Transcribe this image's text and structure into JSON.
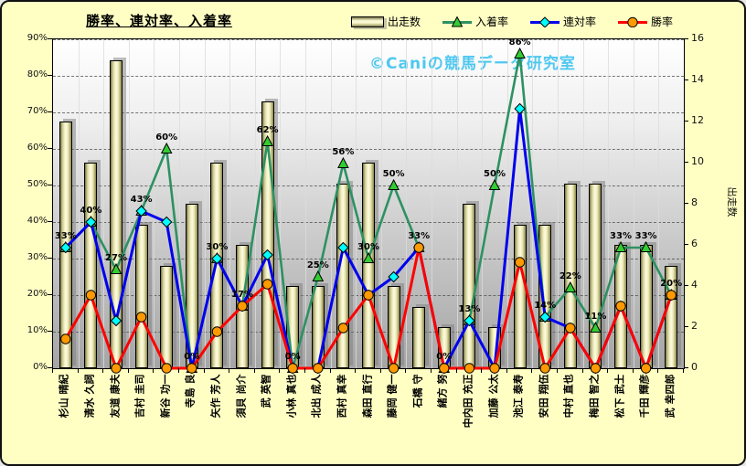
{
  "title": "勝率、連対率、入着率",
  "watermark": "©Caniの競馬データ研究室",
  "chart_data": {
    "type": "combo-bar-line",
    "title": "勝率、連対率、入着率",
    "categories": [
      "杉山 晴紀",
      "清水 久詞",
      "友道 康夫",
      "吉村 圭司",
      "新谷 功一",
      "寺島 良",
      "矢作 芳人",
      "須貝 尚介",
      "武 英智",
      "小林 真也",
      "北出 成人",
      "西村 真幸",
      "森田 直行",
      "藤岡 健一",
      "石橋 守",
      "緒方 努",
      "中内田 充正",
      "加藤 公太",
      "池江 泰寿",
      "安田 翔伍",
      "中村 直也",
      "梅田 智之",
      "松下 武士",
      "千田 輝彦",
      "武 幸四郎"
    ],
    "series": [
      {
        "key": "starts",
        "name": "出走数",
        "type": "bar",
        "axis": "right",
        "values": [
          12,
          10,
          15,
          7,
          5,
          8,
          10,
          6,
          13,
          4,
          4,
          9,
          10,
          4,
          3,
          2,
          8,
          2,
          7,
          7,
          9,
          9,
          6,
          6,
          5
        ]
      },
      {
        "key": "place_rate",
        "name": "入着率",
        "type": "line",
        "axis": "left",
        "color": "#2d9162",
        "marker": "triangle",
        "marker_fill": "#33cc33",
        "values": [
          33,
          40,
          27,
          43,
          60,
          0,
          30,
          17,
          62,
          0,
          25,
          56,
          30,
          50,
          33,
          0,
          13,
          50,
          86,
          14,
          22,
          11,
          33,
          33,
          20
        ],
        "labels": [
          "33%",
          "40%",
          "27%",
          "43%",
          "60%",
          "0%",
          "30%",
          "17%",
          "62%",
          "0%",
          "25%",
          "56%",
          "30%",
          "50%",
          "33%",
          "0%",
          "13%",
          "50%",
          "86%",
          "14%",
          "22%",
          "11%",
          "33%",
          "33%",
          "20%"
        ]
      },
      {
        "key": "quinella_rate",
        "name": "連対率",
        "type": "line",
        "axis": "left",
        "color": "#0000ee",
        "marker": "diamond",
        "marker_fill": "#00ffff",
        "values": [
          33,
          40,
          13,
          43,
          40,
          0,
          30,
          17,
          31,
          0,
          0,
          33,
          20,
          25,
          33,
          0,
          13,
          0,
          71,
          14,
          11,
          0,
          17,
          0,
          20
        ]
      },
      {
        "key": "win_rate",
        "name": "勝率",
        "type": "line",
        "axis": "left",
        "color": "#ff0000",
        "marker": "circle",
        "marker_fill": "#ff9900",
        "values": [
          8,
          20,
          0,
          14,
          0,
          0,
          10,
          17,
          23,
          0,
          0,
          11,
          20,
          0,
          33,
          0,
          0,
          0,
          29,
          0,
          11,
          0,
          17,
          0,
          20
        ]
      }
    ],
    "left_axis": {
      "min": 0,
      "max": 90,
      "ticks": [
        "0%",
        "10%",
        "20%",
        "30%",
        "40%",
        "50%",
        "60%",
        "70%",
        "80%",
        "90%"
      ]
    },
    "right_axis": {
      "min": 0,
      "max": 16,
      "ticks": [
        "0",
        "2",
        "4",
        "6",
        "8",
        "10",
        "12",
        "14",
        "16"
      ],
      "title": "出走数"
    },
    "legend_position": "top",
    "grid": true
  }
}
